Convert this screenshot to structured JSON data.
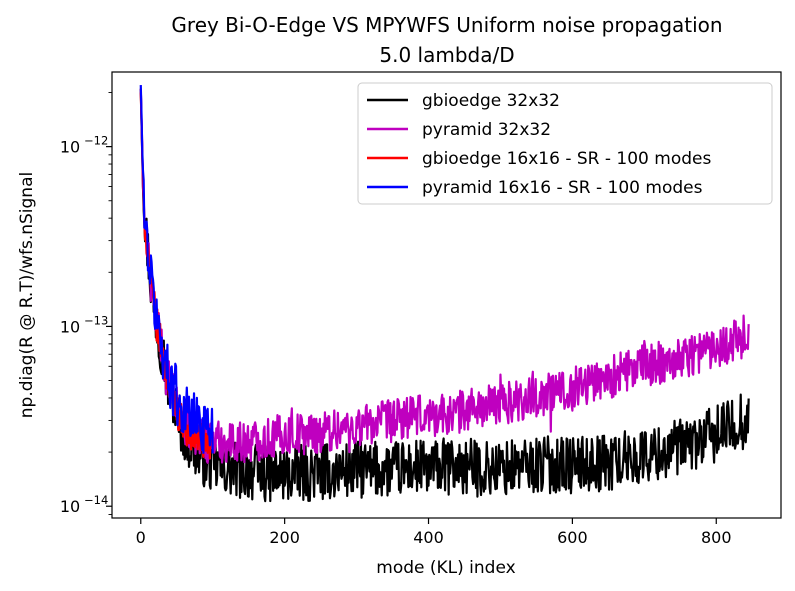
{
  "chart_data": {
    "type": "line",
    "title": "Grey Bi-O-Edge VS MPYWFS Uniform noise propagation",
    "subtitle": "5.0 lambda/D",
    "xlabel": "mode (KL) index",
    "ylabel": "np.diag(R @ R.T)/wfs.nSignal",
    "xlim": [
      -40,
      890
    ],
    "ylim": [
      8.6e-15,
      2.6e-12
    ],
    "yscale": "log",
    "grid": false,
    "legend_position": "top-right",
    "x_ticks": [
      {
        "value": 0,
        "label": "0"
      },
      {
        "value": 200,
        "label": "200"
      },
      {
        "value": 400,
        "label": "400"
      },
      {
        "value": 600,
        "label": "600"
      },
      {
        "value": 800,
        "label": "800"
      }
    ],
    "y_ticks": [
      {
        "value": 1e-14,
        "label": "10",
        "exp": "−14"
      },
      {
        "value": 1e-13,
        "label": "10",
        "exp": "−13"
      },
      {
        "value": 1e-12,
        "label": "10",
        "exp": "−12"
      }
    ],
    "series": [
      {
        "name": "gbioedge 32x32",
        "color": "#000000",
        "x": [
          0,
          3,
          6,
          10,
          15,
          20,
          25,
          30,
          35,
          40,
          45,
          50,
          60,
          70,
          80,
          90,
          100,
          120,
          150,
          180,
          200,
          250,
          300,
          350,
          400,
          450,
          500,
          550,
          600,
          650,
          700,
          750,
          800,
          845
        ],
        "y": [
          2.1e-12,
          6.5e-13,
          3.6e-13,
          2.6e-13,
          1.6e-13,
          1.2e-13,
          9e-14,
          7.5e-14,
          5.5e-14,
          4.5e-14,
          4e-14,
          3.3e-14,
          2.6e-14,
          2.2e-14,
          2e-14,
          1.8e-14,
          1.7e-14,
          1.6e-14,
          1.55e-14,
          1.5e-14,
          1.5e-14,
          1.55e-14,
          1.6e-14,
          1.6e-14,
          1.65e-14,
          1.65e-14,
          1.6e-14,
          1.7e-14,
          1.7e-14,
          1.75e-14,
          1.9e-14,
          2.1e-14,
          2.5e-14,
          3.1e-14
        ],
        "jitter": 0.16,
        "spikes": [
          [
            110,
            2.4e-14
          ],
          [
            140,
            1.2e-14
          ],
          [
            170,
            1.25e-14
          ],
          [
            200,
            1.3e-14
          ],
          [
            230,
            1.15e-14
          ],
          [
            260,
            1.2e-14
          ],
          [
            300,
            2.1e-14
          ],
          [
            320,
            1.3e-14
          ],
          [
            360,
            1.35e-14
          ],
          [
            400,
            1.3e-14
          ],
          [
            440,
            1.4e-14
          ],
          [
            470,
            2.1e-14
          ],
          [
            525,
            2e-14
          ],
          [
            560,
            2.2e-14
          ],
          [
            585,
            2.4e-14
          ],
          [
            600,
            1.5e-14
          ],
          [
            625,
            2e-14
          ],
          [
            660,
            2.4e-14
          ],
          [
            680,
            2.2e-14
          ],
          [
            700,
            2.3e-14
          ],
          [
            735,
            2.5e-14
          ],
          [
            760,
            2.6e-14
          ]
        ]
      },
      {
        "name": "pyramid 32x32",
        "color": "#bf00bf",
        "x": [
          0,
          3,
          6,
          10,
          15,
          20,
          25,
          30,
          35,
          40,
          45,
          50,
          60,
          70,
          80,
          90,
          100,
          120,
          150,
          180,
          200,
          250,
          300,
          350,
          400,
          450,
          500,
          550,
          600,
          650,
          700,
          750,
          800,
          845
        ],
        "y": [
          2.1e-12,
          6.5e-13,
          3.6e-13,
          2.6e-13,
          1.6e-13,
          1.2e-13,
          9e-14,
          7.5e-14,
          5.5e-14,
          4.8e-14,
          4.2e-14,
          3.5e-14,
          2.9e-14,
          2.6e-14,
          2.5e-14,
          2.3e-14,
          2.3e-14,
          2.3e-14,
          2.3e-14,
          2.4e-14,
          2.5e-14,
          2.6e-14,
          2.8e-14,
          3e-14,
          3.2e-14,
          3.4e-14,
          3.7e-14,
          4.1e-14,
          4.6e-14,
          5.2e-14,
          6e-14,
          6.7e-14,
          7.8e-14,
          9e-14
        ],
        "jitter": 0.12,
        "spikes": [
          [
            110,
            1.9e-14
          ],
          [
            140,
            1.8e-14
          ],
          [
            175,
            1.9e-14
          ],
          [
            210,
            3.5e-14
          ],
          [
            250,
            2e-14
          ],
          [
            290,
            2e-14
          ],
          [
            330,
            3.6e-14
          ],
          [
            370,
            4e-14
          ],
          [
            420,
            2.6e-14
          ],
          [
            460,
            4.5e-14
          ],
          [
            500,
            5.4e-14
          ],
          [
            545,
            5.6e-14
          ],
          [
            570,
            2.6e-14
          ],
          [
            600,
            3.4e-14
          ],
          [
            610,
            5.8e-14
          ],
          [
            640,
            5.8e-14
          ],
          [
            680,
            6.5e-14
          ],
          [
            700,
            8.3e-14
          ],
          [
            735,
            7.5e-14
          ],
          [
            790,
            8.7e-14
          ],
          [
            845,
            1.03e-13
          ]
        ]
      },
      {
        "name": "gbioedge 16x16 - SR - 100 modes",
        "color": "#ff0000",
        "x": [
          0,
          3,
          6,
          10,
          15,
          20,
          25,
          30,
          35,
          40,
          45,
          50,
          55,
          60,
          65,
          70,
          75,
          80,
          85,
          90,
          95,
          100
        ],
        "y": [
          2e-12,
          6.3e-13,
          3.5e-13,
          2.6e-13,
          1.65e-13,
          1.15e-13,
          9e-14,
          7.2e-14,
          5.6e-14,
          4.6e-14,
          4e-14,
          3.5e-14,
          3.1e-14,
          2.9e-14,
          2.7e-14,
          2.6e-14,
          2.5e-14,
          2.4e-14,
          2.3e-14,
          2.3e-14,
          2.25e-14,
          2.2e-14
        ],
        "jitter": 0.1,
        "spikes": []
      },
      {
        "name": "pyramid 16x16 - SR - 100 modes",
        "color": "#0000ff",
        "x": [
          0,
          3,
          6,
          10,
          15,
          20,
          25,
          30,
          35,
          40,
          45,
          50,
          55,
          60,
          65,
          70,
          75,
          80,
          85,
          90,
          95,
          100
        ],
        "y": [
          2.2e-12,
          6.8e-13,
          3.6e-13,
          2.7e-13,
          1.7e-13,
          1.25e-13,
          9.5e-14,
          7.6e-14,
          6e-14,
          5.2e-14,
          4.6e-14,
          4.1e-14,
          3.7e-14,
          3.4e-14,
          3.3e-14,
          3.1e-14,
          3e-14,
          2.9e-14,
          2.85e-14,
          2.8e-14,
          2.75e-14,
          2.7e-14
        ],
        "jitter": 0.16,
        "spikes": [
          [
            42,
            5.8e-14
          ],
          [
            48,
            6.2e-14
          ],
          [
            80,
            3.6e-14
          ],
          [
            92,
            3.4e-14
          ]
        ]
      }
    ]
  }
}
